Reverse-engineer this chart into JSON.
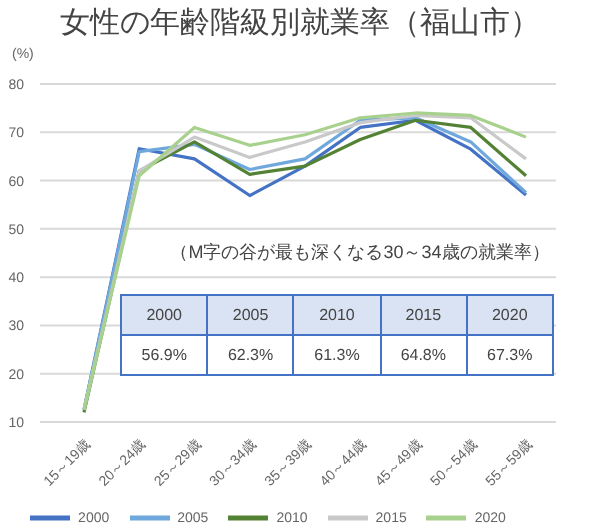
{
  "chart_data": {
    "type": "line",
    "title": "女性の年齢階級別就業率（福山市）",
    "ylabel": "(%)",
    "categories": [
      "15～19歳",
      "20～24歳",
      "25～29歳",
      "30～34歳",
      "35～39歳",
      "40～44歳",
      "45～49歳",
      "50～54歳",
      "55～59歳"
    ],
    "series": [
      {
        "name": "2000",
        "color": "#4472c4",
        "values": [
          12.5,
          66.6,
          64.5,
          56.9,
          63,
          71,
          72.5,
          66.5,
          57
        ]
      },
      {
        "name": "2005",
        "color": "#6fa8dc",
        "values": [
          12.5,
          66,
          67.5,
          62.3,
          64.5,
          72.5,
          73,
          68,
          57.5
        ]
      },
      {
        "name": "2010",
        "color": "#548235",
        "values": [
          12,
          62,
          68,
          61.3,
          63,
          68.5,
          72.5,
          71,
          61
        ]
      },
      {
        "name": "2015",
        "color": "#c9c9c9",
        "values": [
          12.5,
          62,
          69,
          64.8,
          68,
          72,
          73.5,
          73,
          64.5
        ]
      },
      {
        "name": "2020",
        "color": "#a9d18e",
        "values": [
          12.5,
          61,
          71,
          67.3,
          69.5,
          73,
          74,
          73.5,
          69
        ]
      }
    ],
    "ylim": [
      10,
      80
    ],
    "yticks": [
      10,
      20,
      30,
      40,
      50,
      60,
      70,
      80
    ],
    "grid": "y",
    "legend": "bottom",
    "marker": "none",
    "line_style": "solid",
    "annotations": [
      "（M字の谷が最も深くなる30～34歳の就業率）",
      "2000",
      "2005",
      "2010",
      "2015",
      "2020",
      "56.9%",
      "62.3%",
      "61.3%",
      "64.8%",
      "67.3%"
    ]
  }
}
